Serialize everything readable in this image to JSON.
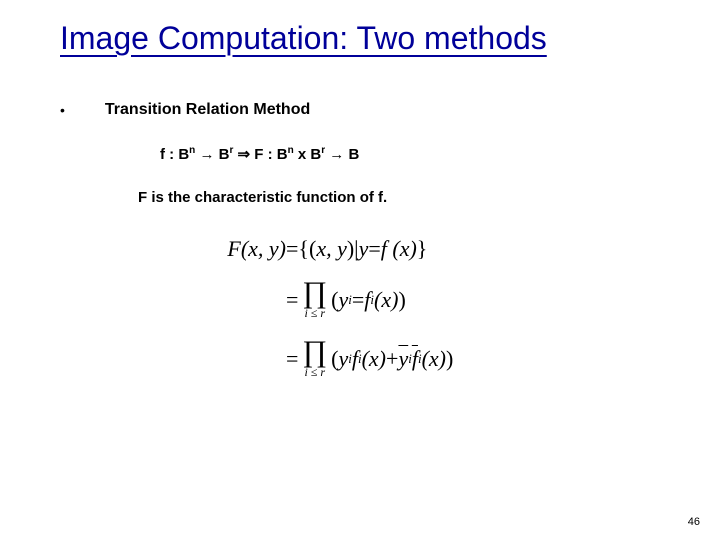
{
  "slide": {
    "title": "Image Computation: Two methods",
    "title_color": "#000099",
    "bullet_char": "•",
    "sub_heading": "Transition Relation Method",
    "formula": {
      "f_label": "f : B",
      "sup_n1": "n",
      "arrow1": " → B",
      "sup_r1": "r",
      "implies": " ⇒ F : B",
      "sup_n2": "n",
      "times": " x B",
      "sup_r2": "r",
      "arrow2": " → B"
    },
    "description": "F is the characteristic function of f.",
    "equations": {
      "line1": {
        "lhs": "F(x, y)",
        "eq": " = ",
        "rhs_open": "{(",
        "rhs_xy": "x, y",
        "rhs_mid": ")| ",
        "rhs_y": "y",
        "rhs_eq": " = ",
        "rhs_f": "f (x)",
        "rhs_close": "}"
      },
      "line2": {
        "eq": "= ",
        "prod_sub": "i ≤ r",
        "open": "(",
        "yi": "y",
        "yi_sub": "i",
        "mid": " = ",
        "fi": "f",
        "fi_sub": "i",
        "fx": " (x)",
        "close": ")"
      },
      "line3": {
        "eq": "= ",
        "prod_sub": "i ≤ r",
        "open": "(",
        "yi": "y",
        "yi_sub": "i ",
        "fi": "f",
        "fi_sub": "i",
        "fx": "(x) ",
        "plus": "+ ",
        "ybar": "y",
        "ybar_sub": "i",
        "sp": " ",
        "fbar": "f",
        "fbar_sub": "i",
        "fbx": "(x)",
        "close": ")"
      }
    },
    "page_number": "46"
  },
  "colors": {
    "background": "#ffffff",
    "title": "#000099",
    "text": "#000000"
  }
}
